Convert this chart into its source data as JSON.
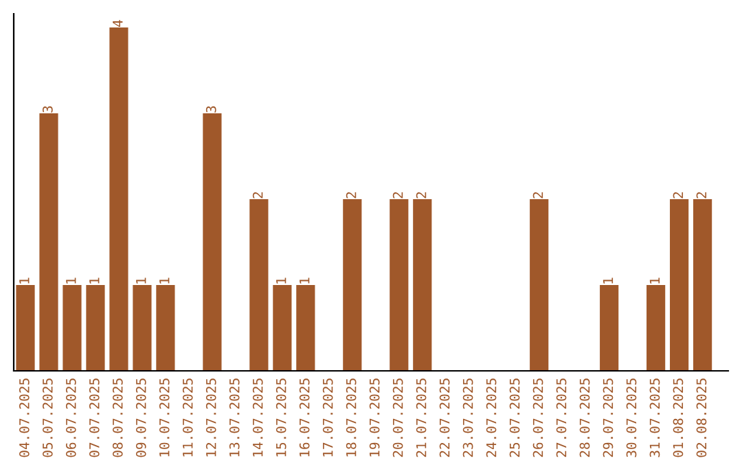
{
  "chart_data": {
    "type": "bar",
    "categories": [
      "04.07.2025",
      "05.07.2025",
      "06.07.2025",
      "07.07.2025",
      "08.07.2025",
      "09.07.2025",
      "10.07.2025",
      "11.07.2025",
      "12.07.2025",
      "13.07.2025",
      "14.07.2025",
      "15.07.2025",
      "16.07.2025",
      "17.07.2025",
      "18.07.2025",
      "19.07.2025",
      "20.07.2025",
      "21.07.2025",
      "22.07.2025",
      "23.07.2025",
      "24.07.2025",
      "25.07.2025",
      "26.07.2025",
      "27.07.2025",
      "28.07.2025",
      "29.07.2025",
      "30.07.2025",
      "31.07.2025",
      "01.08.2025",
      "02.08.2025"
    ],
    "values": [
      1,
      3,
      1,
      1,
      4,
      1,
      1,
      0,
      3,
      0,
      2,
      1,
      1,
      0,
      2,
      0,
      2,
      2,
      0,
      0,
      0,
      0,
      2,
      0,
      0,
      1,
      0,
      1,
      2,
      2
    ],
    "value_labels": [
      "1",
      "3",
      "1",
      "1",
      "4",
      "1",
      "1",
      null,
      "3",
      null,
      "2",
      "1",
      "1",
      null,
      "2",
      null,
      "2",
      "2",
      null,
      null,
      null,
      null,
      "2",
      null,
      null,
      "1",
      null,
      "1",
      "2",
      "2"
    ],
    "color": "#a0582a",
    "tick_labels": "x"
  }
}
